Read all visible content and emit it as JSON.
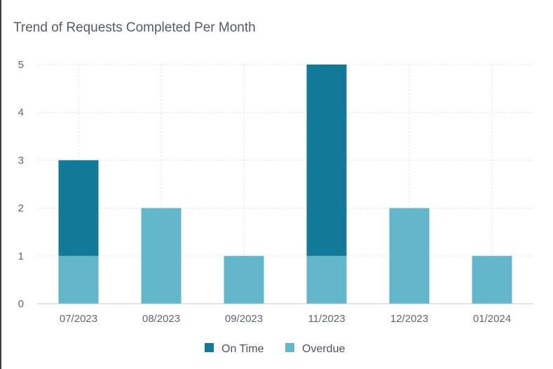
{
  "title": "Trend of Requests Completed Per Month",
  "colors": {
    "on_time": "#137998",
    "overdue": "#62b7cb",
    "grid": "#dddddd",
    "axis": "#c8c8c8"
  },
  "chart_data": {
    "type": "bar",
    "stacked": true,
    "title": "Trend of Requests Completed Per Month",
    "categories": [
      "07/2023",
      "08/2023",
      "09/2023",
      "11/2023",
      "12/2023",
      "01/2024"
    ],
    "series": [
      {
        "name": "Overdue",
        "values": [
          1,
          2,
          1,
          1,
          2,
          1
        ],
        "color": "#62b7cb"
      },
      {
        "name": "On Time",
        "values": [
          2,
          0,
          0,
          4,
          0,
          0
        ],
        "color": "#137998"
      }
    ],
    "legend_order": [
      "On Time",
      "Overdue"
    ],
    "xlabel": "",
    "ylabel": "",
    "ylim": [
      0,
      5
    ],
    "yticks": [
      0,
      1,
      2,
      3,
      4,
      5
    ],
    "grid": true,
    "legend_position": "bottom"
  }
}
